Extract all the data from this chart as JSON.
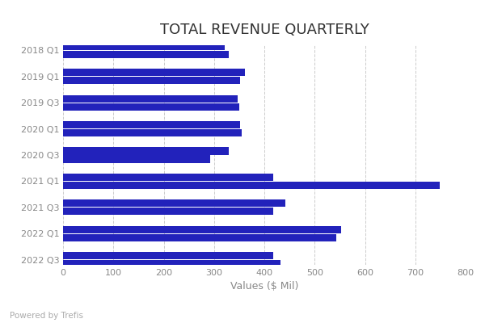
{
  "title": "TOTAL REVENUE QUARTERLY",
  "xlabel": "Values ($ Mil)",
  "bar_color": "#2222BB",
  "legend_color": "#2222BB",
  "categories": [
    "2018 Q1",
    "2019 Q1",
    "2019 Q3",
    "2020 Q1",
    "2020 Q3",
    "2021 Q1",
    "2021 Q3",
    "2022 Q1",
    "2022 Q3"
  ],
  "series1": [
    330,
    352,
    350,
    355,
    293,
    748,
    418,
    543,
    432
  ],
  "series2": [
    322,
    362,
    347,
    352,
    330,
    418,
    442,
    552,
    418
  ],
  "xlim": [
    0,
    800
  ],
  "xticks": [
    0,
    100,
    200,
    300,
    400,
    500,
    600,
    700,
    800
  ],
  "background_color": "#ffffff",
  "grid_color": "#cccccc",
  "powered_text": "Powered by Trefis",
  "title_fontsize": 13,
  "label_fontsize": 9,
  "tick_fontsize": 8,
  "bar_height": 0.28,
  "bar_gap": 0.03
}
